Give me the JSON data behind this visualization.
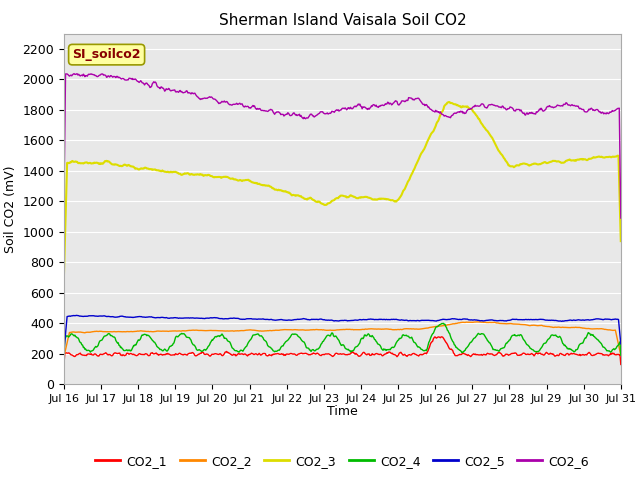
{
  "title": "Sherman Island Vaisala Soil CO2",
  "ylabel": "Soil CO2 (mV)",
  "xlabel": "Time",
  "ylim": [
    0,
    2300
  ],
  "yticks": [
    0,
    200,
    400,
    600,
    800,
    1000,
    1200,
    1400,
    1600,
    1800,
    2000,
    2200
  ],
  "xtick_labels": [
    "Jul 16",
    "Jul 17",
    "Jul 18",
    "Jul 19",
    "Jul 20",
    "Jul 21",
    "Jul 22",
    "Jul 23",
    "Jul 24",
    "Jul 25",
    "Jul 26",
    "Jul 27",
    "Jul 28",
    "Jul 29",
    "Jul 30",
    "Jul 31"
  ],
  "annotation_text": "SI_soilco2",
  "annotation_box_color": "#ffffa0",
  "annotation_text_color": "#880000",
  "annotation_border_color": "#999900",
  "bg_color": "#e8e8e8",
  "line_colors": {
    "CO2_1": "#ff0000",
    "CO2_2": "#ff8800",
    "CO2_3": "#dddd00",
    "CO2_4": "#00bb00",
    "CO2_5": "#0000cc",
    "CO2_6": "#aa00aa"
  },
  "legend_labels": [
    "CO2_1",
    "CO2_2",
    "CO2_3",
    "CO2_4",
    "CO2_5",
    "CO2_6"
  ]
}
